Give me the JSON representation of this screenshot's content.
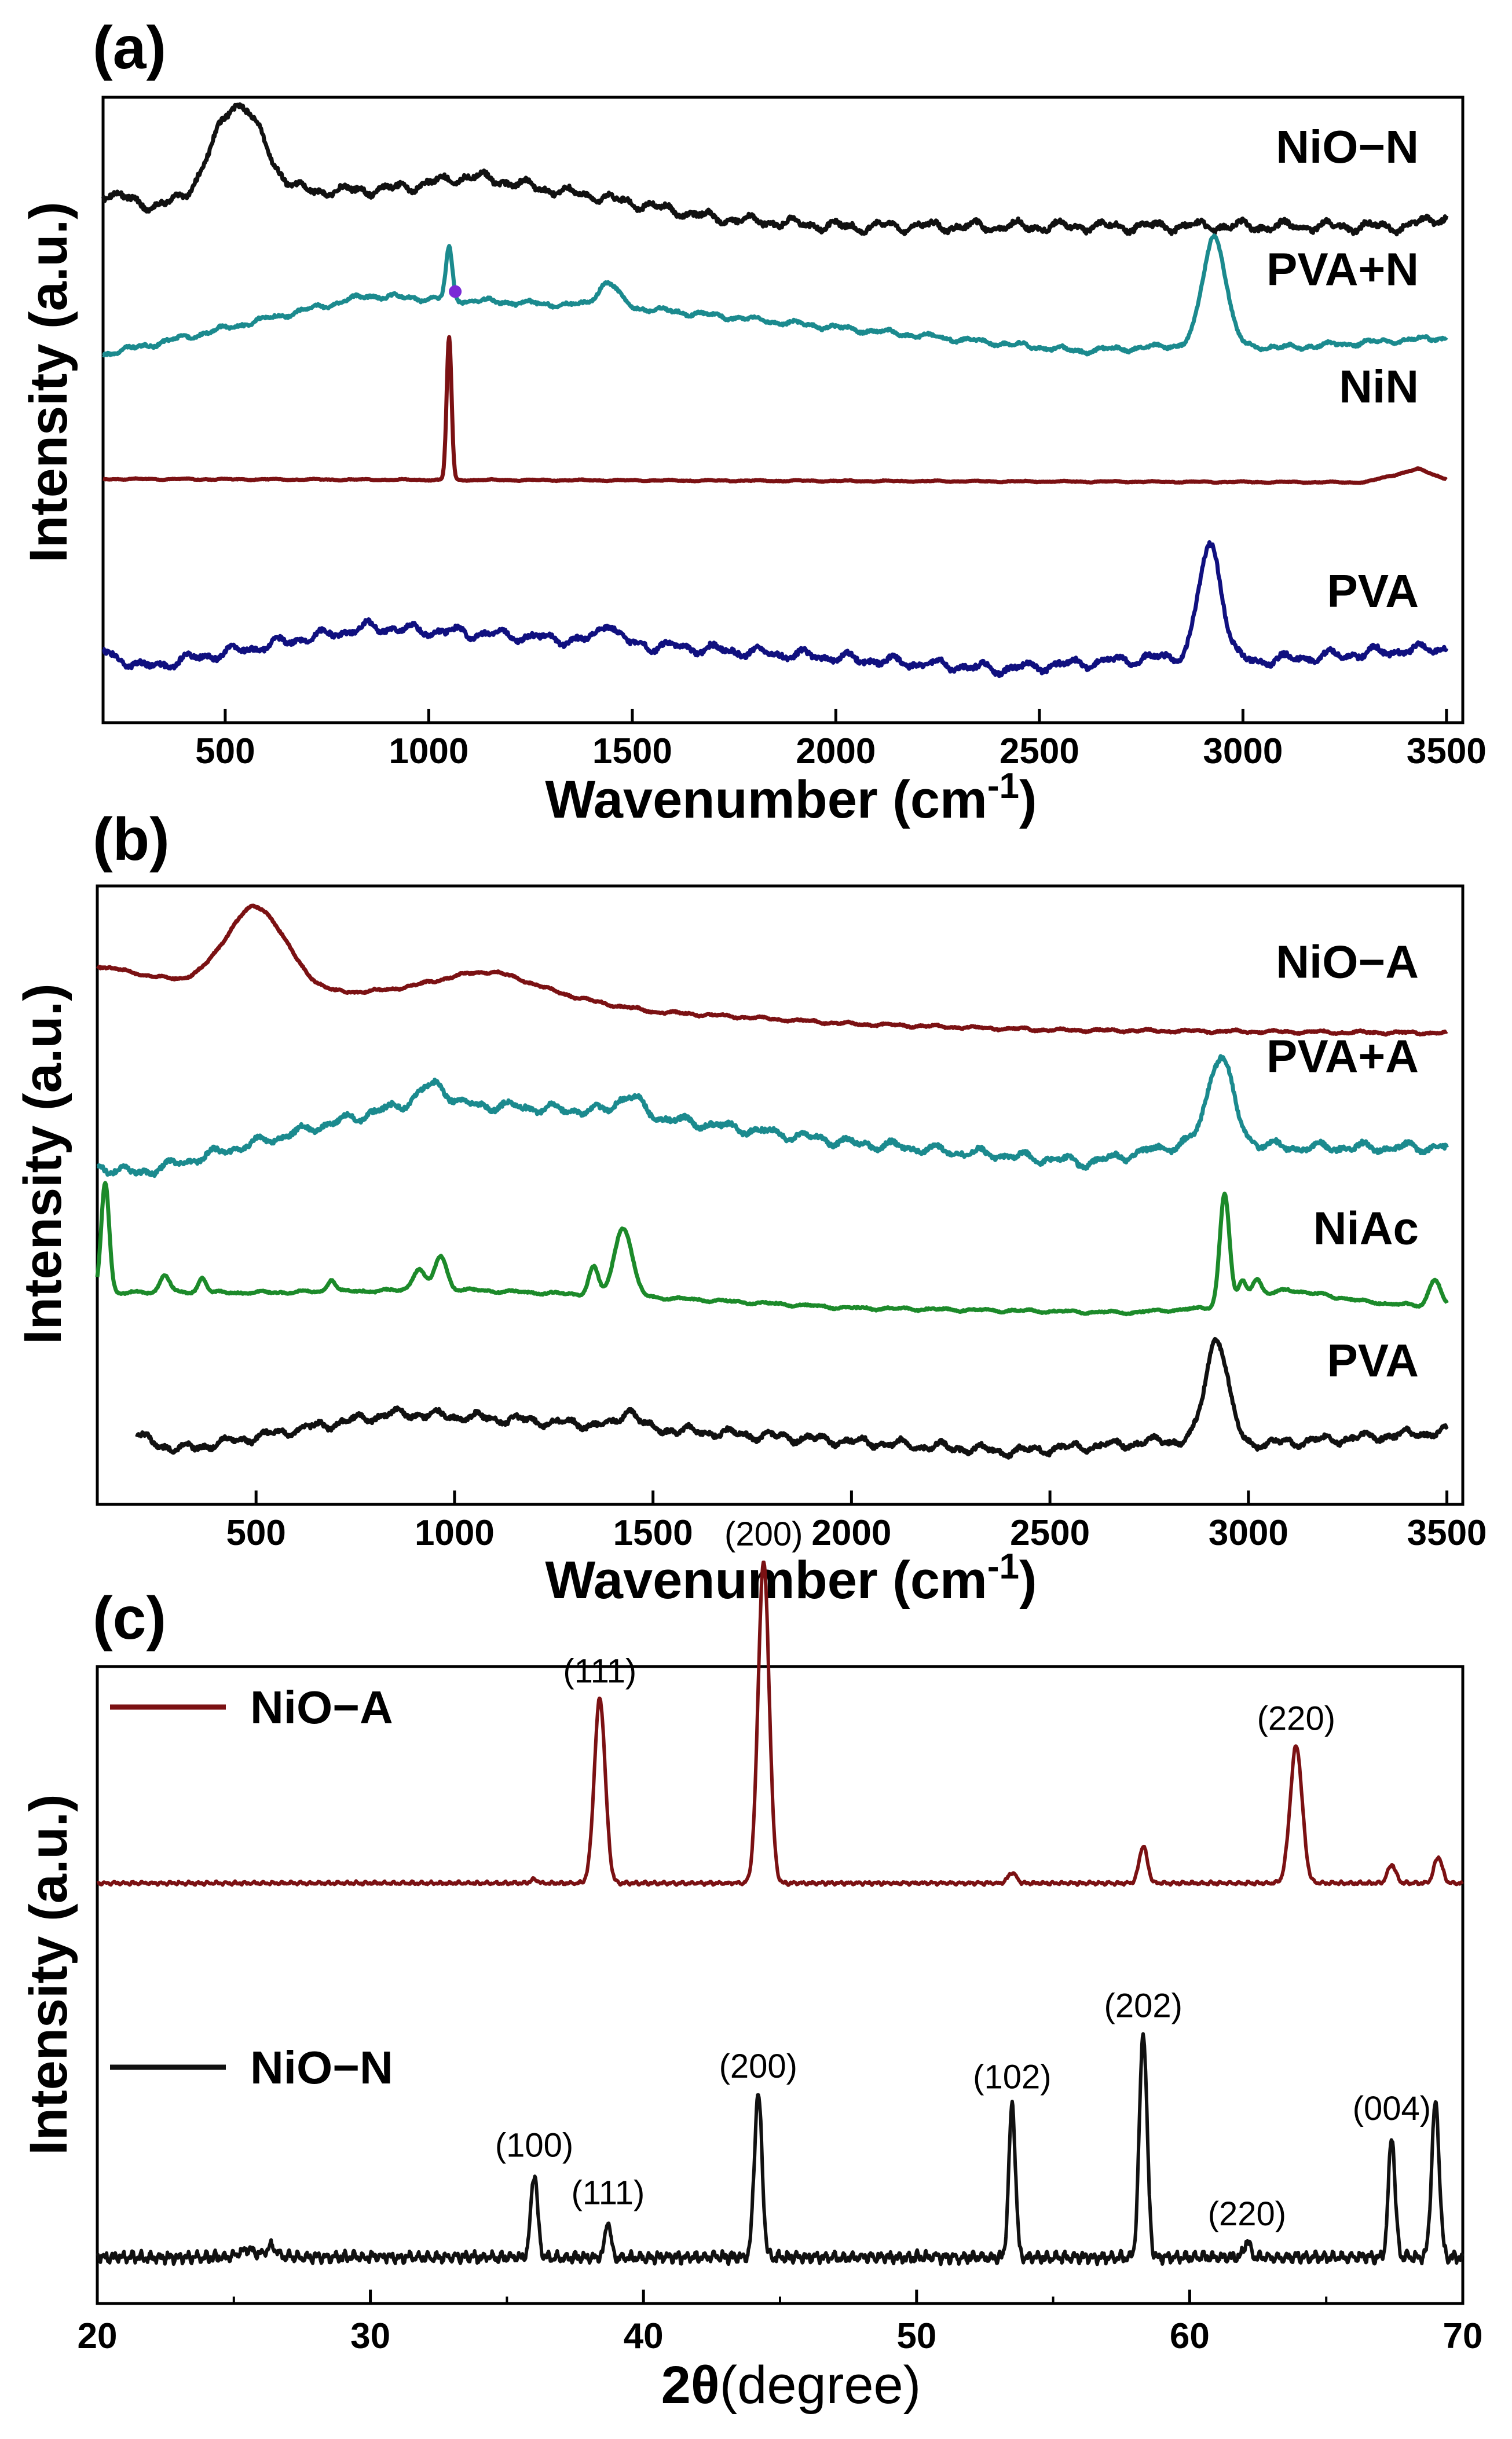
{
  "colors": {
    "black": "#111111",
    "teal": "#1b8a8e",
    "dark_red": "#7b1113",
    "navy": "#10107f",
    "green": "#1c8a2a",
    "marker_purple": "#7a2ad6"
  },
  "chart_data": [
    {
      "panel_label": "(a)",
      "type": "line",
      "title": "",
      "xlabel": "Wavenumber (cm",
      "xlabel_sup": "-1",
      "xlabel_close": ")",
      "ylabel": "Intensity (a.u.)",
      "xlim": [
        200,
        3540
      ],
      "xticks": [
        500,
        1000,
        1500,
        2000,
        2500,
        3000,
        3500
      ],
      "series": [
        {
          "name": "NiO−N",
          "color": "#111111",
          "offset": 3.0,
          "x_start": 200,
          "x_end": 3500,
          "noise": 0.035,
          "baseline": [
            [
              200,
              0.3
            ],
            [
              330,
              0.22
            ],
            [
              600,
              0.3
            ],
            [
              900,
              0.32
            ],
            [
              1100,
              0.4
            ],
            [
              1300,
              0.32
            ],
            [
              1500,
              0.24
            ],
            [
              1700,
              0.15
            ],
            [
              2000,
              0.1
            ],
            [
              3400,
              0.1
            ],
            [
              3500,
              0.16
            ]
          ],
          "peaks": [
            [
              530,
              0.55,
              60
            ]
          ]
        },
        {
          "name": "PVA+N",
          "color": "#1b8a8e",
          "offset": 2.0,
          "x_start": 200,
          "x_end": 3500,
          "noise": 0.018,
          "baseline": [
            [
              200,
              0.2
            ],
            [
              400,
              0.3
            ],
            [
              850,
              0.55
            ],
            [
              1100,
              0.52
            ],
            [
              1500,
              0.48
            ],
            [
              2000,
              0.36
            ],
            [
              2600,
              0.22
            ],
            [
              2900,
              0.26
            ],
            [
              3100,
              0.24
            ],
            [
              3500,
              0.3
            ]
          ],
          "peaks": [
            [
              1050,
              0.3,
              8
            ],
            [
              1440,
              0.14,
              25
            ],
            [
              2930,
              0.65,
              28
            ]
          ]
        },
        {
          "name": "NiN",
          "color": "#7b1113",
          "offset": 1.0,
          "x_start": 200,
          "x_end": 3500,
          "noise": 0.004,
          "baseline": [
            [
              200,
              0.32
            ],
            [
              3300,
              0.3
            ],
            [
              3430,
              0.38
            ],
            [
              3500,
              0.32
            ]
          ],
          "peaks": [
            [
              1050,
              0.85,
              6
            ]
          ]
        },
        {
          "name": "PVA",
          "color": "#10107f",
          "offset": 0.0,
          "x_start": 200,
          "x_end": 3500,
          "noise": 0.035,
          "baseline": [
            [
              200,
              0.15
            ],
            [
              300,
              0.06
            ],
            [
              850,
              0.3
            ],
            [
              1200,
              0.25
            ],
            [
              1500,
              0.2
            ],
            [
              2400,
              0.05
            ],
            [
              2800,
              0.12
            ],
            [
              3050,
              0.1
            ],
            [
              3500,
              0.18
            ]
          ],
          "peaks": [
            [
              1440,
              0.12,
              20
            ],
            [
              2920,
              0.68,
              28
            ]
          ]
        }
      ]
    },
    {
      "panel_label": "(b)",
      "type": "line",
      "title": "",
      "xlabel": "Wavenumber (cm",
      "xlabel_sup": "-1",
      "xlabel_close": ")",
      "ylabel": "Intensity (a.u.)",
      "xlim": [
        100,
        3540
      ],
      "xticks": [
        500,
        1000,
        1500,
        2000,
        2500,
        3000,
        3500
      ],
      "series": [
        {
          "name": "NiO−A",
          "color": "#7b1113",
          "offset": 3.0,
          "x_start": 100,
          "x_end": 3500,
          "noise": 0.01,
          "baseline": [
            [
              100,
              0.5
            ],
            [
              300,
              0.4
            ],
            [
              700,
              0.32
            ],
            [
              1100,
              0.36
            ],
            [
              1500,
              0.2
            ],
            [
              2000,
              0.12
            ],
            [
              2500,
              0.08
            ],
            [
              3500,
              0.06
            ]
          ],
          "peaks": [
            [
              500,
              0.52,
              75
            ],
            [
              1080,
              0.1,
              120
            ]
          ]
        },
        {
          "name": "PVA+A",
          "color": "#1b8a8e",
          "offset": 2.0,
          "x_start": 100,
          "x_end": 3500,
          "noise": 0.035,
          "baseline": [
            [
              100,
              0.1
            ],
            [
              200,
              0.05
            ],
            [
              500,
              0.25
            ],
            [
              900,
              0.52
            ],
            [
              1400,
              0.45
            ],
            [
              2000,
              0.25
            ],
            [
              2600,
              0.12
            ],
            [
              2900,
              0.28
            ],
            [
              3100,
              0.22
            ],
            [
              3500,
              0.22
            ]
          ],
          "peaks": [
            [
              950,
              0.12,
              30
            ],
            [
              1440,
              0.12,
              30
            ],
            [
              2930,
              0.55,
              30
            ]
          ]
        },
        {
          "name": "NiAc",
          "color": "#1c8a2a",
          "offset": 1.0,
          "x_start": 100,
          "x_end": 3500,
          "noise": 0.01,
          "baseline": [
            [
              100,
              0.18
            ],
            [
              500,
              0.18
            ],
            [
              1000,
              0.2
            ],
            [
              1500,
              0.15
            ],
            [
              2000,
              0.08
            ],
            [
              2700,
              0.05
            ],
            [
              2900,
              0.08
            ],
            [
              3100,
              0.2
            ],
            [
              3300,
              0.12
            ],
            [
              3500,
              0.08
            ]
          ],
          "peaks": [
            [
              120,
              0.72,
              10
            ],
            [
              270,
              0.12,
              12
            ],
            [
              365,
              0.1,
              10
            ],
            [
              690,
              0.08,
              10
            ],
            [
              910,
              0.14,
              15
            ],
            [
              965,
              0.22,
              15
            ],
            [
              1350,
              0.18,
              12
            ],
            [
              1425,
              0.45,
              22
            ],
            [
              2940,
              0.72,
              12
            ],
            [
              2985,
              0.12,
              10
            ],
            [
              3020,
              0.12,
              12
            ],
            [
              3470,
              0.18,
              15
            ]
          ]
        },
        {
          "name": "PVA",
          "color": "#111111",
          "offset": 0.0,
          "x_start": 200,
          "x_end": 3500,
          "noise": 0.035,
          "baseline": [
            [
              200,
              0.15
            ],
            [
              300,
              0.06
            ],
            [
              850,
              0.3
            ],
            [
              1200,
              0.25
            ],
            [
              1500,
              0.2
            ],
            [
              2400,
              0.05
            ],
            [
              2800,
              0.12
            ],
            [
              3050,
              0.1
            ],
            [
              3500,
              0.18
            ]
          ],
          "peaks": [
            [
              1440,
              0.12,
              20
            ],
            [
              2920,
              0.68,
              28
            ]
          ]
        }
      ]
    },
    {
      "panel_label": "(c)",
      "type": "line",
      "title": "",
      "xlabel_theta": "2θ",
      "xlabel_unit": "(degree)",
      "ylabel": "Intensity (a.u.)",
      "xlim": [
        20,
        70
      ],
      "xticks": [
        20,
        30,
        40,
        50,
        60,
        70
      ],
      "series": [
        {
          "name": "NiO−A",
          "color": "#7b1113",
          "offset": 1.45,
          "x_start": 20,
          "x_end": 70,
          "noise": 0.006,
          "baseline": [
            [
              20,
              0.04
            ],
            [
              70,
              0.04
            ]
          ],
          "peaks": [
            [
              36.0,
              0.015,
              0.12
            ],
            [
              38.4,
              0.7,
              0.2
            ],
            [
              44.4,
              1.22,
              0.2
            ],
            [
              53.5,
              0.04,
              0.15
            ],
            [
              58.3,
              0.14,
              0.15
            ],
            [
              63.9,
              0.52,
              0.22
            ],
            [
              67.4,
              0.07,
              0.15
            ],
            [
              69.1,
              0.1,
              0.15
            ]
          ],
          "annotations": [
            {
              "x": 38.4,
              "label": "(111)"
            },
            {
              "x": 44.4,
              "label": "(200)"
            },
            {
              "x": 63.9,
              "label": "(220)"
            }
          ]
        },
        {
          "name": "NiO−N",
          "color": "#111111",
          "offset": 0.0,
          "x_start": 20,
          "x_end": 70,
          "noise": 0.02,
          "baseline": [
            [
              20,
              0.07
            ],
            [
              70,
              0.07
            ]
          ],
          "peaks": [
            [
              25.5,
              0.03,
              0.3
            ],
            [
              26.4,
              0.04,
              0.2
            ],
            [
              36.0,
              0.32,
              0.12
            ],
            [
              38.7,
              0.14,
              0.1
            ],
            [
              44.2,
              0.62,
              0.14
            ],
            [
              53.5,
              0.58,
              0.12
            ],
            [
              58.3,
              0.85,
              0.14
            ],
            [
              62.1,
              0.06,
              0.12
            ],
            [
              67.4,
              0.46,
              0.12
            ],
            [
              69.0,
              0.58,
              0.14
            ]
          ],
          "annotations": [
            {
              "x": 36.0,
              "label": "(100)"
            },
            {
              "x": 38.7,
              "label": "(111)"
            },
            {
              "x": 44.2,
              "label": "(200)"
            },
            {
              "x": 53.5,
              "label": "(102)"
            },
            {
              "x": 58.3,
              "label": "(202)"
            },
            {
              "x": 62.1,
              "label": "(220)"
            },
            {
              "x": 67.4,
              "label": "(004)"
            }
          ]
        }
      ]
    }
  ]
}
